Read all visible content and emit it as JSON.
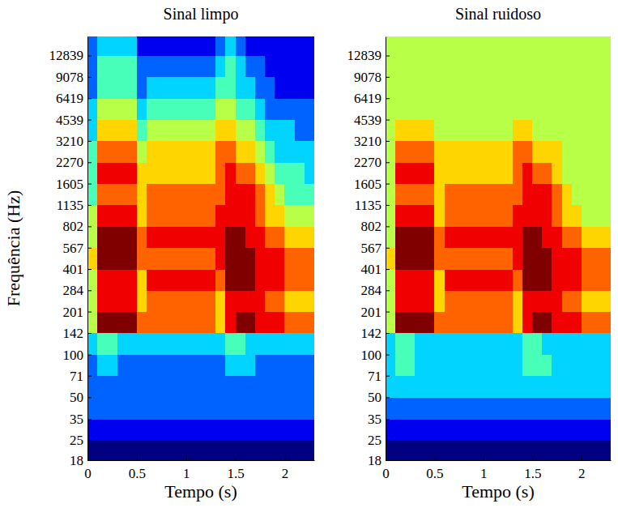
{
  "chart_data": [
    {
      "type": "heatmap",
      "title": "Sinal limpo",
      "xlabel": "Tempo (s)",
      "ylabel": "Frequência (Hz)",
      "log": "y",
      "xlim": [
        0,
        2.3
      ],
      "ylim": [
        18,
        17500
      ],
      "xticks": [
        0,
        0.5,
        1,
        1.5,
        2
      ],
      "yticks": [
        18,
        25,
        35,
        50,
        71,
        100,
        142,
        201,
        284,
        401,
        567,
        802,
        1135,
        1605,
        2270,
        3210,
        4539,
        6419,
        9078,
        12839
      ],
      "zlim": [
        0,
        9
      ],
      "x_edges": [
        0,
        0.1,
        0.2,
        0.3,
        0.4,
        0.5,
        0.6,
        0.7,
        0.8,
        0.9,
        1,
        1.1,
        1.2,
        1.3,
        1.4,
        1.5,
        1.6,
        1.7,
        1.8,
        1.9,
        2,
        2.1,
        2.2,
        2.3
      ],
      "y_edges": [
        18,
        25,
        35,
        50,
        71,
        100,
        142,
        201,
        284,
        401,
        567,
        802,
        1135,
        1605,
        2270,
        3210,
        4539,
        6419,
        9078,
        12839,
        17500
      ],
      "values": [
        [
          0,
          0,
          0,
          0,
          0,
          0,
          0,
          0,
          0,
          0,
          0,
          0,
          0,
          0,
          0,
          0,
          0,
          0,
          0,
          0,
          0,
          0,
          0
        ],
        [
          1,
          1,
          1,
          1,
          1,
          1,
          1,
          1,
          1,
          1,
          1,
          1,
          1,
          1,
          1,
          1,
          1,
          1,
          1,
          1,
          1,
          1,
          1
        ],
        [
          2,
          2,
          2,
          2,
          2,
          2,
          2,
          2,
          2,
          2,
          2,
          2,
          2,
          2,
          2,
          2,
          2,
          2,
          2,
          2,
          2,
          2,
          2
        ],
        [
          2,
          2,
          2,
          2,
          2,
          2,
          2,
          2,
          2,
          2,
          2,
          2,
          2,
          2,
          2,
          2,
          2,
          2,
          2,
          2,
          2,
          2,
          2
        ],
        [
          2,
          3,
          3,
          2,
          2,
          2,
          2,
          2,
          2,
          2,
          2,
          2,
          2,
          2,
          3,
          3,
          3,
          2,
          2,
          2,
          2,
          2,
          2
        ],
        [
          3,
          4,
          4,
          3,
          3,
          3,
          3,
          3,
          3,
          3,
          3,
          3,
          3,
          3,
          4,
          4,
          3,
          3,
          3,
          3,
          3,
          3,
          3
        ],
        [
          5,
          9,
          9,
          9,
          9,
          7,
          7,
          7,
          7,
          7,
          7,
          7,
          7,
          6,
          8,
          9,
          9,
          8,
          8,
          8,
          7,
          7,
          7
        ],
        [
          5,
          8,
          8,
          8,
          8,
          6,
          7,
          7,
          7,
          7,
          7,
          7,
          7,
          6,
          8,
          8,
          8,
          8,
          7,
          7,
          6,
          6,
          6
        ],
        [
          5,
          8,
          8,
          8,
          8,
          6,
          8,
          8,
          8,
          8,
          8,
          8,
          8,
          7,
          9,
          9,
          9,
          8,
          8,
          8,
          7,
          7,
          7
        ],
        [
          6,
          9,
          9,
          9,
          9,
          7,
          7,
          7,
          7,
          7,
          7,
          7,
          7,
          8,
          9,
          9,
          9,
          8,
          8,
          8,
          7,
          7,
          7
        ],
        [
          5,
          9,
          9,
          9,
          9,
          7,
          8,
          8,
          8,
          8,
          8,
          8,
          8,
          8,
          9,
          9,
          8,
          8,
          7,
          7,
          6,
          6,
          6
        ],
        [
          5,
          8,
          8,
          8,
          8,
          6,
          7,
          7,
          7,
          7,
          7,
          7,
          7,
          8,
          8,
          8,
          8,
          7,
          6,
          6,
          5,
          5,
          5
        ],
        [
          4,
          7,
          7,
          7,
          7,
          6,
          7,
          7,
          7,
          7,
          7,
          7,
          7,
          7,
          8,
          8,
          8,
          7,
          6,
          5,
          4,
          4,
          4
        ],
        [
          4,
          8,
          8,
          8,
          8,
          6,
          6,
          6,
          6,
          6,
          6,
          6,
          6,
          7,
          8,
          7,
          7,
          6,
          5,
          4,
          4,
          4,
          3
        ],
        [
          4,
          7,
          7,
          7,
          7,
          5,
          6,
          6,
          6,
          6,
          6,
          6,
          6,
          7,
          7,
          6,
          6,
          5,
          4,
          3,
          3,
          3,
          3
        ],
        [
          3,
          6,
          6,
          6,
          6,
          4,
          5,
          5,
          5,
          5,
          5,
          5,
          5,
          6,
          6,
          5,
          5,
          4,
          3,
          3,
          3,
          2,
          2
        ],
        [
          3,
          5,
          5,
          5,
          5,
          3,
          4,
          4,
          4,
          4,
          4,
          4,
          4,
          5,
          5,
          4,
          4,
          3,
          2,
          2,
          2,
          2,
          2
        ],
        [
          2,
          4,
          4,
          4,
          4,
          2,
          3,
          3,
          3,
          3,
          3,
          3,
          3,
          4,
          4,
          3,
          3,
          2,
          2,
          1,
          1,
          1,
          1
        ],
        [
          2,
          4,
          4,
          4,
          4,
          2,
          2,
          2,
          2,
          2,
          2,
          2,
          2,
          3,
          4,
          3,
          2,
          2,
          1,
          1,
          1,
          1,
          1
        ],
        [
          2,
          3,
          3,
          3,
          3,
          1,
          1,
          1,
          1,
          1,
          1,
          1,
          1,
          2,
          3,
          2,
          1,
          1,
          1,
          1,
          1,
          1,
          1
        ]
      ]
    },
    {
      "type": "heatmap",
      "title": "Sinal ruidoso",
      "xlabel": "Tempo (s)",
      "log": "y",
      "xlim": [
        0,
        2.3
      ],
      "ylim": [
        18,
        17500
      ],
      "xticks": [
        0,
        0.5,
        1,
        1.5,
        2
      ],
      "yticks": [
        18,
        25,
        35,
        50,
        71,
        100,
        142,
        201,
        284,
        401,
        567,
        802,
        1135,
        1605,
        2270,
        3210,
        4539,
        6419,
        9078,
        12839
      ],
      "zlim": [
        0,
        9
      ],
      "x_edges": [
        0,
        0.1,
        0.2,
        0.3,
        0.4,
        0.5,
        0.6,
        0.7,
        0.8,
        0.9,
        1,
        1.1,
        1.2,
        1.3,
        1.4,
        1.5,
        1.6,
        1.7,
        1.8,
        1.9,
        2,
        2.1,
        2.2,
        2.3
      ],
      "y_edges": [
        18,
        25,
        35,
        50,
        71,
        100,
        142,
        201,
        284,
        401,
        567,
        802,
        1135,
        1605,
        2270,
        3210,
        4539,
        6419,
        9078,
        12839,
        17500
      ],
      "values": [
        [
          0,
          0,
          0,
          0,
          0,
          0,
          0,
          0,
          0,
          0,
          0,
          0,
          0,
          0,
          0,
          0,
          0,
          0,
          0,
          0,
          0,
          0,
          0
        ],
        [
          1,
          1,
          1,
          1,
          1,
          1,
          1,
          1,
          1,
          1,
          1,
          1,
          1,
          1,
          1,
          1,
          1,
          1,
          1,
          1,
          1,
          1,
          1
        ],
        [
          2,
          2,
          2,
          2,
          2,
          2,
          2,
          2,
          2,
          2,
          2,
          2,
          2,
          2,
          2,
          2,
          2,
          2,
          2,
          2,
          2,
          2,
          2
        ],
        [
          3,
          3,
          3,
          3,
          3,
          3,
          3,
          3,
          3,
          3,
          3,
          3,
          3,
          3,
          3,
          3,
          3,
          3,
          3,
          3,
          3,
          3,
          3
        ],
        [
          3,
          4,
          4,
          3,
          3,
          3,
          3,
          3,
          3,
          3,
          3,
          3,
          3,
          3,
          4,
          4,
          4,
          3,
          3,
          3,
          3,
          3,
          3
        ],
        [
          3,
          4,
          4,
          3,
          3,
          3,
          3,
          3,
          3,
          3,
          3,
          3,
          3,
          3,
          4,
          4,
          3,
          3,
          3,
          3,
          3,
          3,
          3
        ],
        [
          5,
          9,
          9,
          9,
          9,
          7,
          7,
          7,
          7,
          7,
          7,
          7,
          7,
          6,
          8,
          9,
          9,
          8,
          8,
          8,
          7,
          7,
          7
        ],
        [
          5,
          8,
          8,
          8,
          8,
          6,
          7,
          7,
          7,
          7,
          7,
          7,
          7,
          6,
          8,
          8,
          8,
          8,
          7,
          7,
          6,
          6,
          6
        ],
        [
          5,
          8,
          8,
          8,
          8,
          6,
          8,
          8,
          8,
          8,
          8,
          8,
          8,
          7,
          9,
          9,
          9,
          8,
          8,
          8,
          7,
          7,
          7
        ],
        [
          6,
          9,
          9,
          9,
          9,
          7,
          7,
          7,
          7,
          7,
          7,
          7,
          7,
          8,
          9,
          9,
          9,
          8,
          8,
          8,
          7,
          7,
          7
        ],
        [
          5,
          9,
          9,
          9,
          9,
          7,
          8,
          8,
          8,
          8,
          8,
          8,
          8,
          8,
          9,
          9,
          8,
          8,
          7,
          7,
          6,
          6,
          6
        ],
        [
          5,
          8,
          8,
          8,
          8,
          6,
          7,
          7,
          7,
          7,
          7,
          7,
          7,
          8,
          8,
          8,
          8,
          7,
          6,
          6,
          5,
          5,
          5
        ],
        [
          5,
          7,
          7,
          7,
          7,
          6,
          7,
          7,
          7,
          7,
          7,
          7,
          7,
          7,
          8,
          8,
          8,
          7,
          6,
          5,
          5,
          5,
          5
        ],
        [
          5,
          8,
          8,
          8,
          8,
          6,
          6,
          6,
          6,
          6,
          6,
          6,
          6,
          7,
          8,
          7,
          7,
          6,
          5,
          5,
          5,
          5,
          5
        ],
        [
          5,
          7,
          7,
          7,
          7,
          6,
          6,
          6,
          6,
          6,
          6,
          6,
          6,
          7,
          7,
          6,
          6,
          6,
          5,
          5,
          5,
          5,
          5
        ],
        [
          5,
          6,
          6,
          6,
          6,
          5,
          5,
          5,
          5,
          5,
          5,
          5,
          5,
          6,
          6,
          5,
          5,
          5,
          5,
          5,
          5,
          5,
          5
        ],
        [
          5,
          5,
          5,
          5,
          5,
          5,
          5,
          5,
          5,
          5,
          5,
          5,
          5,
          5,
          5,
          5,
          5,
          5,
          5,
          5,
          5,
          5,
          5
        ],
        [
          5,
          5,
          5,
          5,
          5,
          5,
          5,
          5,
          5,
          5,
          5,
          5,
          5,
          5,
          5,
          5,
          5,
          5,
          5,
          5,
          5,
          5,
          5
        ],
        [
          5,
          5,
          5,
          5,
          5,
          5,
          5,
          5,
          5,
          5,
          5,
          5,
          5,
          5,
          5,
          5,
          5,
          5,
          5,
          5,
          5,
          5,
          5
        ],
        [
          5,
          5,
          5,
          5,
          5,
          5,
          5,
          5,
          5,
          5,
          5,
          5,
          5,
          5,
          5,
          5,
          5,
          5,
          5,
          5,
          5,
          5,
          5
        ]
      ]
    }
  ]
}
